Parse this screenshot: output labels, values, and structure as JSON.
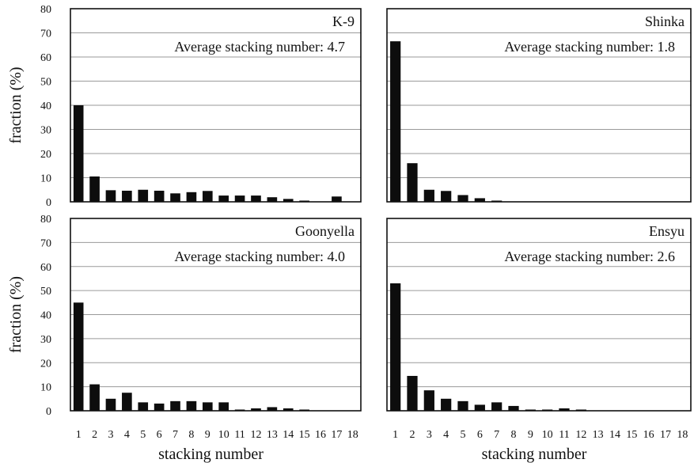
{
  "chart_data": [
    {
      "type": "bar",
      "panel": "top-left",
      "name_label": "K-9",
      "annotation": "Average stacking number: 4.7",
      "ylabel": "fraction (%)",
      "xlabel": "",
      "ylim": [
        0,
        80
      ],
      "yticks": [
        0,
        10,
        20,
        30,
        40,
        50,
        60,
        70,
        80
      ],
      "categories": [
        "1",
        "2",
        "3",
        "4",
        "5",
        "6",
        "7",
        "8",
        "9",
        "10",
        "11",
        "12",
        "13",
        "14",
        "15",
        "16",
        "17",
        "18"
      ],
      "values": [
        40,
        10.5,
        4.8,
        4.6,
        5.0,
        4.6,
        3.5,
        4.0,
        4.5,
        2.6,
        2.6,
        2.6,
        1.9,
        1.2,
        0.5,
        0,
        2.2,
        0
      ],
      "grid": true
    },
    {
      "type": "bar",
      "panel": "top-right",
      "name_label": "Shinka",
      "annotation": "Average stacking number: 1.8",
      "ylabel": "",
      "xlabel": "",
      "ylim": [
        0,
        80
      ],
      "yticks": [],
      "categories": [
        "1",
        "2",
        "3",
        "4",
        "5",
        "6",
        "7",
        "8",
        "9",
        "10",
        "11",
        "12",
        "13",
        "14",
        "15",
        "16",
        "17",
        "18"
      ],
      "values": [
        66.5,
        16,
        5.0,
        4.5,
        2.8,
        1.5,
        0.5,
        0,
        0,
        0,
        0,
        0,
        0,
        0,
        0,
        0,
        0,
        0
      ],
      "grid": true
    },
    {
      "type": "bar",
      "panel": "bottom-left",
      "name_label": "Goonyella",
      "annotation": "Average stacking number: 4.0",
      "ylabel": "fraction (%)",
      "xlabel": "stacking number",
      "ylim": [
        0,
        80
      ],
      "yticks": [
        0,
        10,
        20,
        30,
        40,
        50,
        60,
        70,
        80
      ],
      "categories": [
        "1",
        "2",
        "3",
        "4",
        "5",
        "6",
        "7",
        "8",
        "9",
        "10",
        "11",
        "12",
        "13",
        "14",
        "15",
        "16",
        "17",
        "18"
      ],
      "values": [
        45,
        11,
        5.0,
        7.5,
        3.5,
        3.0,
        4.0,
        4.0,
        3.5,
        3.5,
        0.5,
        1.0,
        1.5,
        1.0,
        0.5,
        0,
        0,
        0
      ],
      "grid": true
    },
    {
      "type": "bar",
      "panel": "bottom-right",
      "name_label": "Ensyu",
      "annotation": "Average stacking number: 2.6",
      "ylabel": "",
      "xlabel": "stacking number",
      "ylim": [
        0,
        80
      ],
      "yticks": [],
      "categories": [
        "1",
        "2",
        "3",
        "4",
        "5",
        "6",
        "7",
        "8",
        "9",
        "10",
        "11",
        "12",
        "13",
        "14",
        "15",
        "16",
        "17",
        "18"
      ],
      "values": [
        53,
        14.5,
        8.5,
        5.0,
        4.0,
        2.5,
        3.5,
        2.0,
        0.5,
        0.5,
        1.0,
        0.5,
        0,
        0,
        0,
        0,
        0,
        0
      ],
      "grid": true
    }
  ]
}
